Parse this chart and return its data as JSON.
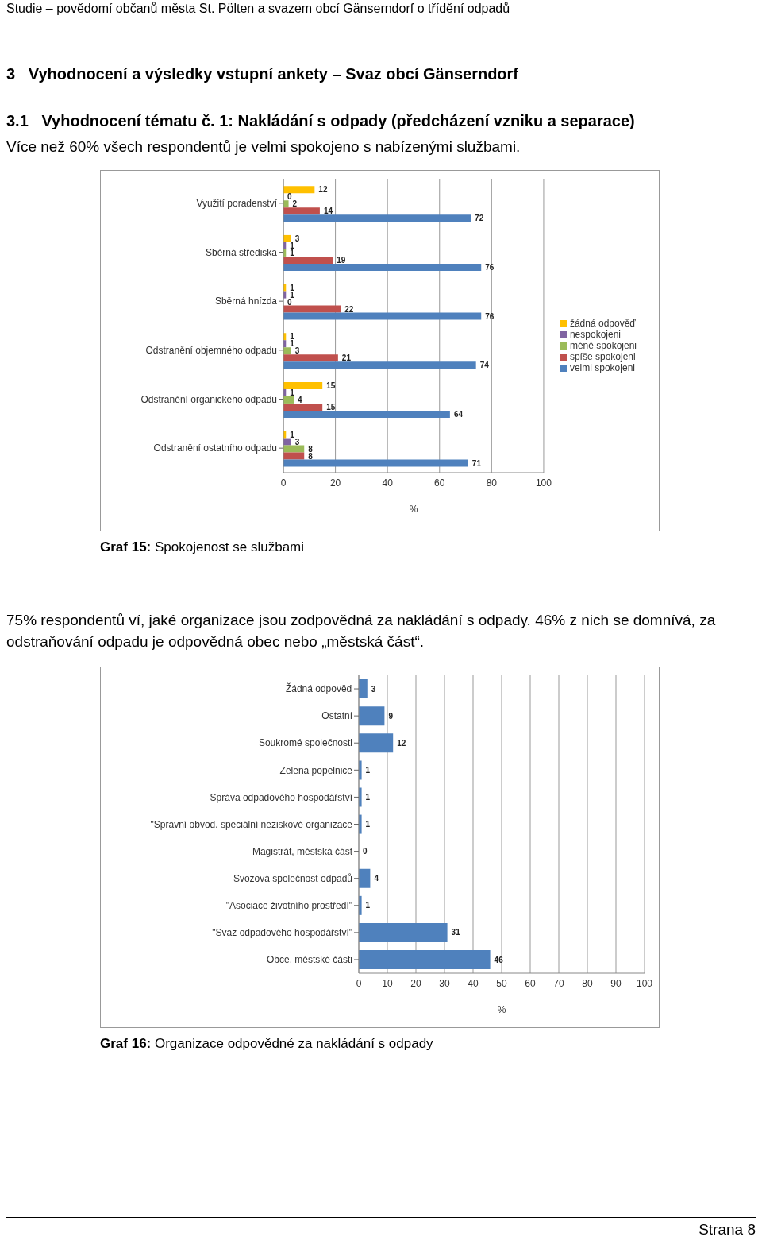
{
  "chart_data": [
    {
      "type": "bar",
      "orientation": "horizontal",
      "title": "Graf 15: Spokojenost se službami",
      "xlabel": "%",
      "annotations": [
        "Studie – povědomí občanů města St. Pölten a svazem obcí Gänserndorf o třídění odpadů",
        "3   Vyhodnocení a výsledky vstupní ankety – Svaz obcí Gänserndorf",
        "3.1   Vyhodnocení tématu č. 1: Nakládání s odpady (předcházení vzniku a separace)",
        "Více než 60% všech respondentů je velmi spokojeno s nabízenými službami."
      ],
      "categories": [
        "Využití poradenství",
        "Sběrná střediska",
        "Sběrná hnízda",
        "Odstranění objemného odpadu",
        "Odstranění organického odpadu",
        "Odstranění ostatního odpadu"
      ],
      "series": [
        {
          "name": "žádná odpověď",
          "color": "#ffc000",
          "values": [
            12,
            3,
            1,
            1,
            15,
            1
          ]
        },
        {
          "name": "nespokojeni",
          "color": "#8064a2",
          "values": [
            0,
            1,
            1,
            1,
            1,
            3
          ]
        },
        {
          "name": "méně spokojeni",
          "color": "#9bbb59",
          "values": [
            2,
            1,
            0,
            3,
            4,
            8
          ]
        },
        {
          "name": "spíše spokojeni",
          "color": "#c0504d",
          "values": [
            14,
            19,
            22,
            21,
            15,
            8
          ]
        },
        {
          "name": "velmi spokojeni",
          "color": "#4f81bd",
          "values": [
            72,
            76,
            76,
            74,
            64,
            71
          ]
        }
      ],
      "xlim": [
        0,
        100
      ],
      "xticks": [
        0,
        20,
        40,
        60,
        80,
        100
      ],
      "grid": "x",
      "legend": "right",
      "data_labels": true
    },
    {
      "type": "bar",
      "orientation": "horizontal",
      "title": "Graf 16: Organizace odpovědné za nakládání s odpady",
      "xlabel": "%",
      "annotations": [
        "75% respondentů ví, jaké organizace jsou zodpovědná za nakládání s odpady. 46% z nich se domnívá, za odstraňování odpadu je odpovědná obec nebo „městská část“.",
        "Strana 8"
      ],
      "categories": [
        "Žádná odpověď",
        "Ostatní",
        "Soukromé společnosti",
        "Zelená popelnice",
        "Správa odpadového hospodářství",
        "\"Správní obvod. speciální neziskové organizace",
        "Magistrát, městská část",
        "Svozová společnost odpadů",
        "\"Asociace životního prostředí\"",
        "\"Svaz odpadového hospodářství\"",
        "Obce, městské části"
      ],
      "values": [
        3,
        9,
        12,
        1,
        1,
        1,
        0,
        4,
        1,
        31,
        46
      ],
      "color": "#4f81bd",
      "xlim": [
        0,
        100
      ],
      "xticks": [
        0,
        10,
        20,
        30,
        40,
        50,
        60,
        70,
        80,
        90,
        100
      ],
      "grid": "x",
      "data_labels": true
    }
  ]
}
